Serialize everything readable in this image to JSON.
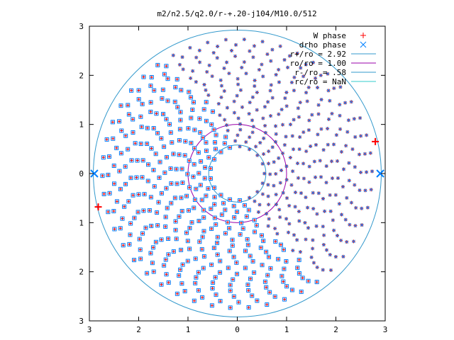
{
  "chart_data": {
    "type": "scatter",
    "title": "m2/n2.5/q2.0/r-+.20-j104/M10.0/512",
    "xlabel": "",
    "ylabel": "",
    "xlim": [
      -3,
      3
    ],
    "ylim": [
      -3,
      3
    ],
    "x_tick_labels": [
      "3",
      "2",
      "1",
      "0",
      "1",
      "2",
      "3"
    ],
    "y_tick_labels": [
      "3",
      "2",
      "1",
      "0",
      "1",
      "2",
      "3"
    ],
    "grid": false,
    "legend_position": "top-right",
    "series": [
      {
        "name": "W phase",
        "marker": "plus",
        "color": "#ff0000",
        "x": [
          2.8,
          -2.82
        ],
        "y": [
          0.65,
          -0.68
        ]
      },
      {
        "name": "drho phase",
        "marker": "x",
        "color": "#0080ff",
        "x": [
          2.9,
          -2.9
        ],
        "y": [
          0.0,
          0.0
        ]
      },
      {
        "name": "r+/ro = 2.92",
        "type": "circle",
        "r": 2.92,
        "color": "#3399cc"
      },
      {
        "name": "ro/ro = 1.00",
        "type": "circle",
        "r": 1.0,
        "color": "#9900aa"
      },
      {
        "name": "r-/ro = .58",
        "type": "circle",
        "r": 0.58,
        "color": "#3399cc"
      },
      {
        "name": "rc/ro = NaN",
        "type": "circle",
        "r": null,
        "color": "#33cccc"
      }
    ],
    "legend_entries": [
      {
        "label": "W phase",
        "marker": "plus",
        "color": "#ff0000"
      },
      {
        "label": "drho phase",
        "marker": "x",
        "color": "#0080ff"
      },
      {
        "label": "r+/ro = 2.92",
        "marker": "line",
        "color": "#3399cc"
      },
      {
        "label": "ro/ro = 1.00",
        "marker": "line",
        "color": "#9900aa"
      },
      {
        "label": "r-/ro = .58",
        "marker": "line",
        "color": "#3399cc"
      },
      {
        "label": "rc/ro = NaN",
        "marker": "line",
        "color": "#33cccc"
      }
    ]
  }
}
